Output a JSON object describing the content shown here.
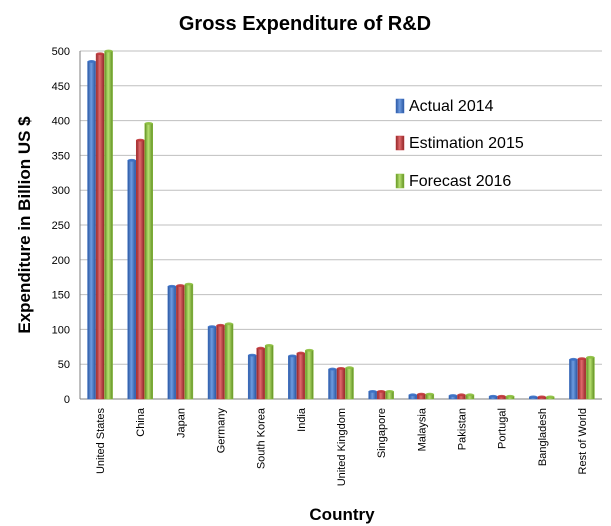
{
  "chart_data": {
    "type": "bar",
    "title": "Gross Expenditure of R&D",
    "xlabel": "Country",
    "ylabel": "Expenditure in Billion US $",
    "ylim": [
      0,
      500
    ],
    "yticks": [
      0,
      50,
      100,
      150,
      200,
      250,
      300,
      350,
      400,
      450,
      500
    ],
    "grid": true,
    "legend_position": "right",
    "categories": [
      "United States",
      "China",
      "Japan",
      "Germany",
      "South Korea",
      "India",
      "United Kingdom",
      "Singapore",
      "Malaysia",
      "Pakistan",
      "Portugal",
      "Bangladesh",
      "Rest of World"
    ],
    "series": [
      {
        "name": "Actual 2014",
        "color": "#3a6fc4",
        "values": [
          485,
          343,
          162,
          104,
          63,
          62,
          43,
          11,
          6,
          5,
          4,
          3,
          57
        ]
      },
      {
        "name": "Estimation 2015",
        "color": "#c0393b",
        "values": [
          496,
          372,
          163,
          106,
          73,
          66,
          44,
          11,
          7,
          6,
          4,
          3,
          58
        ]
      },
      {
        "name": "Forecast 2016",
        "color": "#8cbf3f",
        "values": [
          500,
          396,
          165,
          108,
          77,
          70,
          45,
          11,
          7,
          6,
          4,
          3,
          60
        ]
      }
    ]
  }
}
